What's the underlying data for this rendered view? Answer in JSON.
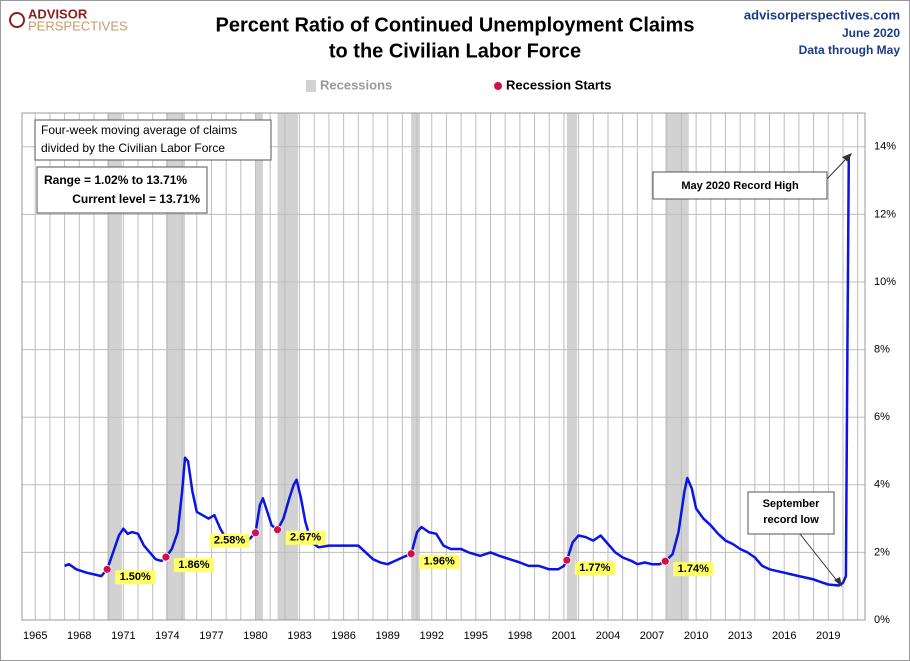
{
  "chart_data": {
    "type": "line",
    "title": [
      "Percent Ratio of Continued Unemployment Claims",
      "to the Civilian Labor Force"
    ],
    "logo": [
      "ADVISOR",
      "PERSPECTIVES"
    ],
    "source": [
      "advisorperspectives.com",
      "June 2020",
      "Data through May"
    ],
    "legend": {
      "recessions": "Recessions",
      "recession_starts": "Recession Starts"
    },
    "color": "#0a14e6",
    "recession_color": "#d2d2d2",
    "marker_color": "#d0104c",
    "grid": true,
    "xlim": [
      1964.1,
      2021.5
    ],
    "ylim": [
      0,
      15
    ],
    "xticks": [
      {
        "value": 1965,
        "label": "1965"
      },
      {
        "value": 1966,
        "label": null
      },
      {
        "value": 1967,
        "label": null
      },
      {
        "value": 1968,
        "label": "1968"
      },
      {
        "value": 1969,
        "label": null
      },
      {
        "value": 1970,
        "label": null
      },
      {
        "value": 1971,
        "label": "1971"
      },
      {
        "value": 1972,
        "label": null
      },
      {
        "value": 1973,
        "label": null
      },
      {
        "value": 1974,
        "label": "1974"
      },
      {
        "value": 1975,
        "label": null
      },
      {
        "value": 1976,
        "label": null
      },
      {
        "value": 1977,
        "label": "1977"
      },
      {
        "value": 1978,
        "label": null
      },
      {
        "value": 1979,
        "label": null
      },
      {
        "value": 1980,
        "label": "1980"
      },
      {
        "value": 1981,
        "label": null
      },
      {
        "value": 1982,
        "label": null
      },
      {
        "value": 1983,
        "label": "1983"
      },
      {
        "value": 1984,
        "label": null
      },
      {
        "value": 1985,
        "label": null
      },
      {
        "value": 1986,
        "label": "1986"
      },
      {
        "value": 1987,
        "label": null
      },
      {
        "value": 1988,
        "label": null
      },
      {
        "value": 1989,
        "label": "1989"
      },
      {
        "value": 1990,
        "label": null
      },
      {
        "value": 1991,
        "label": null
      },
      {
        "value": 1992,
        "label": "1992"
      },
      {
        "value": 1993,
        "label": null
      },
      {
        "value": 1994,
        "label": null
      },
      {
        "value": 1995,
        "label": "1995"
      },
      {
        "value": 1996,
        "label": null
      },
      {
        "value": 1997,
        "label": null
      },
      {
        "value": 1998,
        "label": "1998"
      },
      {
        "value": 1999,
        "label": null
      },
      {
        "value": 2000,
        "label": null
      },
      {
        "value": 2001,
        "label": "2001"
      },
      {
        "value": 2002,
        "label": null
      },
      {
        "value": 2003,
        "label": null
      },
      {
        "value": 2004,
        "label": "2004"
      },
      {
        "value": 2005,
        "label": null
      },
      {
        "value": 2006,
        "label": null
      },
      {
        "value": 2007,
        "label": "2007"
      },
      {
        "value": 2008,
        "label": null
      },
      {
        "value": 2009,
        "label": null
      },
      {
        "value": 2010,
        "label": "2010"
      },
      {
        "value": 2011,
        "label": null
      },
      {
        "value": 2012,
        "label": null
      },
      {
        "value": 2013,
        "label": "2013"
      },
      {
        "value": 2014,
        "label": null
      },
      {
        "value": 2015,
        "label": null
      },
      {
        "value": 2016,
        "label": "2016"
      },
      {
        "value": 2017,
        "label": null
      },
      {
        "value": 2018,
        "label": null
      },
      {
        "value": 2019,
        "label": "2019"
      },
      {
        "value": 2020,
        "label": null
      },
      {
        "value": 2021,
        "label": null
      }
    ],
    "yticks": [
      {
        "value": 0,
        "label": "0%"
      },
      {
        "value": 2,
        "label": "2%"
      },
      {
        "value": 4,
        "label": "4%"
      },
      {
        "value": 6,
        "label": "6%"
      },
      {
        "value": 8,
        "label": "8%"
      },
      {
        "value": 10,
        "label": "10%"
      },
      {
        "value": 12,
        "label": "12%"
      },
      {
        "value": 14,
        "label": "14%"
      }
    ],
    "recessions": [
      [
        1969.9,
        1970.9
      ],
      [
        1973.9,
        1975.2
      ],
      [
        1980.0,
        1980.5
      ],
      [
        1981.5,
        1982.9
      ],
      [
        1990.6,
        1991.2
      ],
      [
        2001.2,
        2001.9
      ],
      [
        2007.9,
        2009.5
      ]
    ],
    "recession_starts": {
      "x": [
        1969.9,
        1973.9,
        1980.0,
        1981.5,
        1990.6,
        2001.2,
        2007.9
      ],
      "values": [
        1.5,
        1.86,
        2.58,
        2.67,
        1.96,
        1.77,
        1.74
      ],
      "value_labels": [
        "1.50%",
        "1.86%",
        "2.58%",
        "2.67%",
        "1.96%",
        "1.77%",
        "1.74%"
      ]
    },
    "x": [
      1967.0,
      1967.3,
      1967.8,
      1968.5,
      1969.0,
      1969.5,
      1969.9,
      1970.3,
      1970.7,
      1971.0,
      1971.3,
      1971.6,
      1972.0,
      1972.4,
      1972.8,
      1973.2,
      1973.6,
      1973.9,
      1974.3,
      1974.7,
      1975.0,
      1975.2,
      1975.4,
      1975.7,
      1976.0,
      1976.4,
      1976.8,
      1977.2,
      1977.6,
      1978.0,
      1978.4,
      1978.8,
      1979.2,
      1979.6,
      1980.0,
      1980.3,
      1980.5,
      1980.8,
      1981.1,
      1981.5,
      1981.9,
      1982.3,
      1982.6,
      1982.8,
      1983.1,
      1983.4,
      1983.8,
      1984.3,
      1985.0,
      1986.0,
      1987.0,
      1987.5,
      1988.0,
      1988.5,
      1989.0,
      1989.5,
      1990.0,
      1990.6,
      1991.0,
      1991.3,
      1991.8,
      1992.3,
      1992.8,
      1993.3,
      1994.0,
      1994.5,
      1995.3,
      1996.0,
      1996.6,
      1997.3,
      1998.0,
      1998.6,
      1999.3,
      2000.0,
      2000.6,
      2001.0,
      2001.2,
      2001.6,
      2002.0,
      2002.5,
      2003.0,
      2003.5,
      2004.0,
      2004.5,
      2005.0,
      2005.6,
      2006.0,
      2006.5,
      2007.0,
      2007.5,
      2007.9,
      2008.4,
      2008.8,
      2009.2,
      2009.4,
      2009.7,
      2010.0,
      2010.5,
      2011.0,
      2011.5,
      2012.0,
      2012.5,
      2013.0,
      2013.5,
      2014.0,
      2014.5,
      2015.0,
      2016.0,
      2017.0,
      2018.0,
      2018.5,
      2019.0,
      2019.7,
      2020.0,
      2020.2,
      2020.3,
      2020.4
    ],
    "values": [
      1.6,
      1.65,
      1.5,
      1.4,
      1.35,
      1.3,
      1.5,
      2.0,
      2.5,
      2.7,
      2.55,
      2.6,
      2.55,
      2.2,
      2.0,
      1.8,
      1.75,
      1.86,
      2.1,
      2.6,
      3.8,
      4.8,
      4.7,
      3.8,
      3.2,
      3.1,
      3.0,
      3.1,
      2.7,
      2.4,
      2.2,
      2.3,
      2.25,
      2.4,
      2.58,
      3.4,
      3.6,
      3.2,
      2.8,
      2.67,
      3.0,
      3.6,
      4.0,
      4.15,
      3.6,
      2.9,
      2.3,
      2.15,
      2.2,
      2.2,
      2.2,
      2.0,
      1.8,
      1.7,
      1.65,
      1.75,
      1.85,
      1.96,
      2.6,
      2.75,
      2.6,
      2.55,
      2.2,
      2.1,
      2.1,
      2.0,
      1.9,
      2.0,
      1.9,
      1.8,
      1.7,
      1.6,
      1.6,
      1.5,
      1.5,
      1.6,
      1.77,
      2.3,
      2.5,
      2.45,
      2.35,
      2.5,
      2.25,
      2.0,
      1.85,
      1.75,
      1.65,
      1.7,
      1.65,
      1.65,
      1.74,
      1.95,
      2.6,
      3.8,
      4.2,
      3.9,
      3.3,
      3.0,
      2.8,
      2.55,
      2.35,
      2.25,
      2.1,
      2.0,
      1.85,
      1.6,
      1.5,
      1.4,
      1.3,
      1.2,
      1.12,
      1.05,
      1.02,
      1.1,
      1.3,
      8.0,
      13.71
    ],
    "annotations": {
      "description": [
        "Four-week moving average of claims",
        "divided by the Civilian Labor Force"
      ],
      "range": [
        "Range = 1.02% to 13.71%",
        "Current level = 13.71%"
      ],
      "record_high": "May  2020 Record High",
      "record_low": [
        "September",
        "record low"
      ]
    }
  }
}
